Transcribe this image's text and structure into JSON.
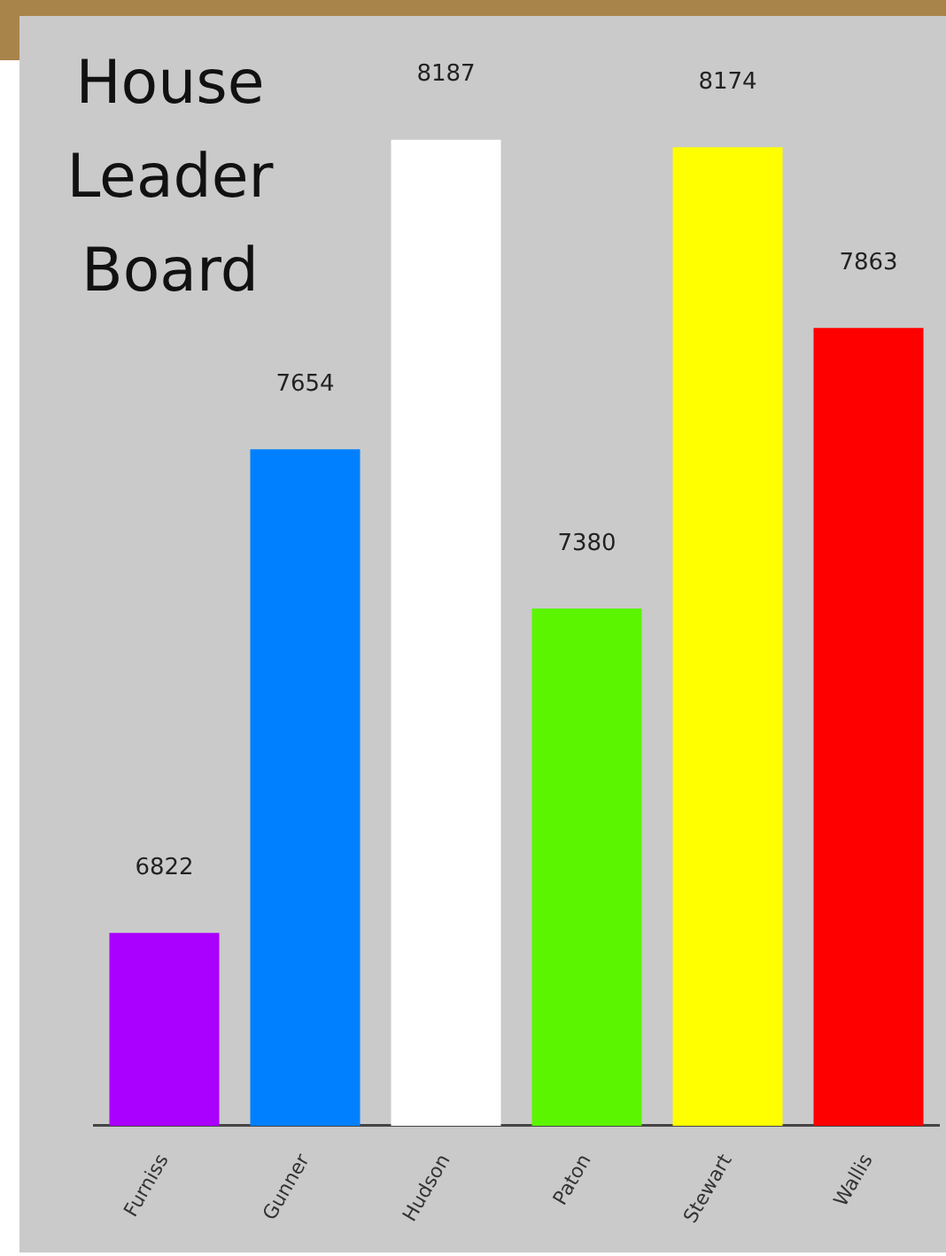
{
  "chart_data": {
    "type": "bar",
    "title": "House Leader Board",
    "categories": [
      "Furniss",
      "Gunner",
      "Hudson",
      "Paton",
      "Stewart",
      "Wallis"
    ],
    "values": [
      6822,
      7654,
      8187,
      7380,
      8174,
      7863
    ],
    "colors": [
      "#aa00ff",
      "#0080ff",
      "#ffffff",
      "#5cf500",
      "#ffff00",
      "#ff0000"
    ],
    "ylim": [
      6490,
      8400
    ],
    "data_labels": true,
    "grid": false,
    "legend": false
  }
}
